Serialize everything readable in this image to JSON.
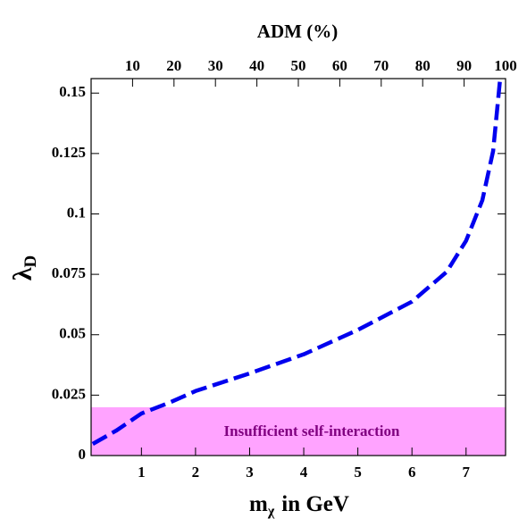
{
  "chart_data": {
    "type": "line",
    "xlabel": "m",
    "xlabel_sub": "χ",
    "xlabel_rest": "in GeV",
    "ylabel": "λ",
    "ylabel_sub": "D",
    "x2label": "ADM (%)",
    "xlim": [
      0.07,
      7.73
    ],
    "xticks": [
      1,
      2,
      3,
      4,
      5,
      6,
      7
    ],
    "ylim": [
      0,
      0.156
    ],
    "yticks": [
      0,
      0.025,
      0.05,
      0.075,
      0.1,
      0.125,
      0.15
    ],
    "x2lim": [
      0,
      100
    ],
    "x2ticks": [
      10,
      20,
      30,
      40,
      50,
      60,
      70,
      80,
      90,
      100
    ],
    "x": [
      0.1,
      0.54,
      1,
      1.53,
      2,
      3,
      4,
      5,
      6,
      6.64,
      7,
      7.3,
      7.5,
      7.63
    ],
    "series": [
      {
        "color": "#0000ee",
        "values": [
          0.0048,
          0.0104,
          0.0174,
          0.022,
          0.0267,
          0.034,
          0.0419,
          0.052,
          0.0637,
          0.076,
          0.0889,
          0.1056,
          0.126,
          0.156
        ]
      }
    ],
    "band": {
      "range": [
        0,
        0.02
      ],
      "label": "Insufficient self-interaction",
      "color": "#ff99ff",
      "text_color": "#800080"
    }
  }
}
